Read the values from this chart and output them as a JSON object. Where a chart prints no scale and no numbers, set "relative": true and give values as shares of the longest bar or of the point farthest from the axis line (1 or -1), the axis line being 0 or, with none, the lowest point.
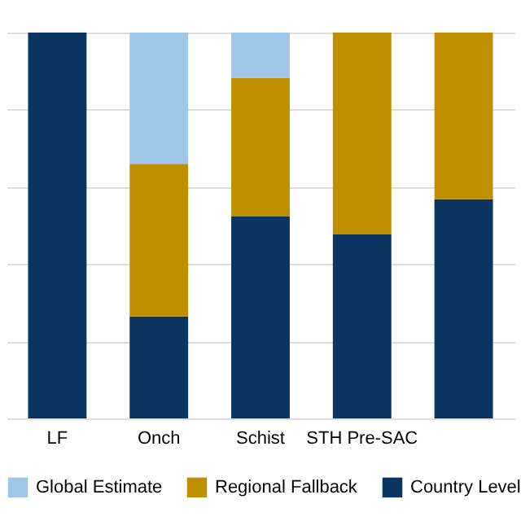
{
  "chart_data": {
    "type": "bar",
    "stacked": true,
    "relative": true,
    "grid": "y",
    "legend": "bottom",
    "categories": [
      "LF",
      "Onch",
      "Schist",
      "STH Pre-SAC",
      null
    ],
    "series": [
      {
        "name": "Country Level",
        "color": "#0a3560",
        "values": [
          1,
          0.264,
          0.523,
          0.477,
          0.568
        ]
      },
      {
        "name": "Regional Fallback",
        "color": "#bf8f00",
        "values": [
          0,
          0.396,
          0.36,
          0.523,
          0.432
        ]
      },
      {
        "name": "Global Estimate",
        "color": "#9fc5e8",
        "values": [
          0,
          0.34,
          0.117,
          0,
          0
        ]
      }
    ]
  }
}
